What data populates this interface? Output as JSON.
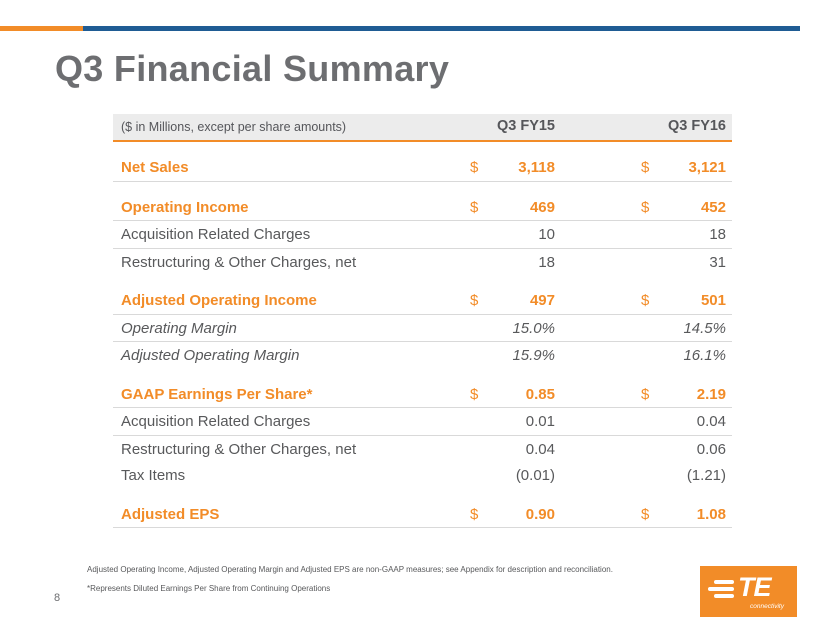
{
  "slide": {
    "title": "Q3 Financial Summary",
    "page_number": "8"
  },
  "table": {
    "header": {
      "label": "($ in Millions, except per share amounts)",
      "col1": "Q3 FY15",
      "col2": "Q3 FY16"
    },
    "rows": [
      {
        "label": "Net Sales",
        "d1": "$",
        "v1": "3,118",
        "d2": "$",
        "v2": "3,121"
      },
      {
        "label": "Operating Income",
        "d1": "$",
        "v1": "469",
        "d2": "$",
        "v2": "452"
      },
      {
        "label": "Acquisition Related Charges",
        "d1": "",
        "v1": "10",
        "d2": "",
        "v2": "18"
      },
      {
        "label": "Restructuring & Other Charges, net",
        "d1": "",
        "v1": "18",
        "d2": "",
        "v2": "31"
      },
      {
        "label": "Adjusted Operating Income",
        "d1": "$",
        "v1": "497",
        "d2": "$",
        "v2": "501"
      },
      {
        "label": "Operating Margin",
        "d1": "",
        "v1": "15.0%",
        "d2": "",
        "v2": "14.5%"
      },
      {
        "label": "Adjusted Operating Margin",
        "d1": "",
        "v1": "15.9%",
        "d2": "",
        "v2": "16.1%"
      },
      {
        "label": "GAAP Earnings Per Share*",
        "d1": "$",
        "v1": "0.85",
        "d2": "$",
        "v2": "2.19"
      },
      {
        "label": "Acquisition Related Charges",
        "d1": "",
        "v1": "0.01",
        "d2": "",
        "v2": "0.04"
      },
      {
        "label": "Restructuring & Other Charges, net",
        "d1": "",
        "v1": "0.04",
        "d2": "",
        "v2": "0.06"
      },
      {
        "label": "Tax Items",
        "d1": "",
        "v1": "(0.01)",
        "d2": "",
        "v2": "(1.21)"
      },
      {
        "label": "Adjusted EPS",
        "d1": "$",
        "v1": "0.90",
        "d2": "$",
        "v2": "1.08"
      }
    ]
  },
  "footnotes": {
    "non_gaap": "Adjusted Operating Income, Adjusted Operating Margin and  Adjusted EPS are non-GAAP measures;  see Appendix for description and reconciliation.",
    "diluted": "*Represents Diluted Earnings Per Share from Continuing Operations"
  },
  "logo": {
    "name": "TE",
    "tagline": "connectivity"
  },
  "colors": {
    "accent_orange": "#f28c28",
    "accent_blue": "#1f5c94",
    "text_gray": "#58595b"
  }
}
